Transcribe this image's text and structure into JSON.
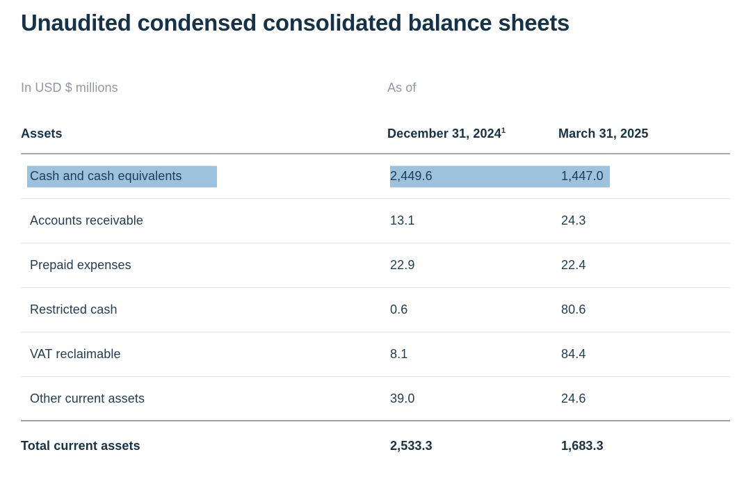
{
  "title": "Unaudited condensed consolidated balance sheets",
  "meta": {
    "units_label": "In USD $ millions",
    "as_of_label": "As of"
  },
  "table": {
    "headers": {
      "col1": "Assets",
      "col2": "December 31, 2024",
      "col2_footnote": "1",
      "col3": "March 31, 2025"
    },
    "rows": [
      {
        "label": "Cash and cash equivalents",
        "dec_31_2024": "2,449.6",
        "mar_31_2025": "1,447.0",
        "highlighted": true
      },
      {
        "label": "Accounts receivable",
        "dec_31_2024": "13.1",
        "mar_31_2025": "24.3",
        "highlighted": false
      },
      {
        "label": "Prepaid expenses",
        "dec_31_2024": "22.9",
        "mar_31_2025": "22.4",
        "highlighted": false
      },
      {
        "label": "Restricted cash",
        "dec_31_2024": "0.6",
        "mar_31_2025": "80.6",
        "highlighted": false
      },
      {
        "label": "VAT reclaimable",
        "dec_31_2024": "8.1",
        "mar_31_2025": "84.4",
        "highlighted": false
      },
      {
        "label": "Other current assets",
        "dec_31_2024": "39.0",
        "mar_31_2025": "24.6",
        "highlighted": false
      }
    ],
    "total_row": {
      "label": "Total current assets",
      "dec_31_2024": "2,533.3",
      "mar_31_2025": "1,683.3"
    }
  },
  "colors": {
    "heading_text": "#15324b",
    "body_text": "#1e3c55",
    "muted_text": "#8e99a5",
    "selection_highlight": "#9cc2de",
    "divider_strong": "#a5acb3",
    "divider_light": "#e8eaec"
  }
}
